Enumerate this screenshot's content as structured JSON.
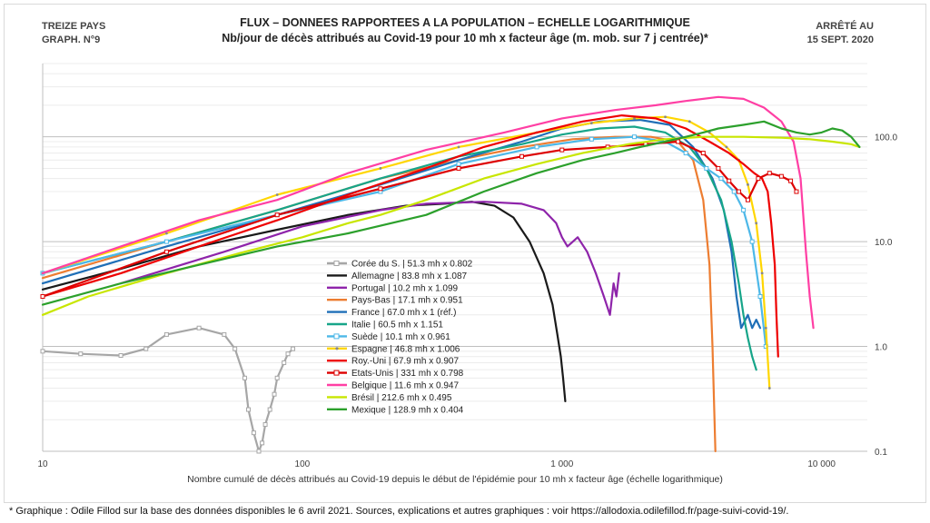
{
  "header": {
    "left_line1": "TREIZE PAYS",
    "left_line2": "GRAPH. N°9",
    "right_line1": "ARRÊTÉ AU",
    "right_line2": "15 SEPT. 2020",
    "title_line1": "FLUX – DONNEES RAPPORTEES A LA POPULATION – ECHELLE LOGARITHMIQUE",
    "title_line2": "Nb/jour de décès attribués au Covid-19 pour 10 mh x facteur âge (m. mob. sur 7 j centrée)*"
  },
  "footnote": "* Graphique : Odile Fillod sur la base des données disponibles le 6 avril 2021. Sources, explications et autres graphiques : voir https://allodoxia.odilefillod.fr/page-suivi-covid-19/.",
  "chart_data": {
    "type": "line",
    "title": "FLUX – DONNEES RAPPORTEES A LA POPULATION – ECHELLE LOGARITHMIQUE",
    "xlabel": "Nombre cumulé de décès attribués au Covid-19 depuis le début de l'épidémie pour 10 mh x facteur âge (échelle logarithmique)",
    "ylabel": "Nb/jour de décès attribués au Covid-19 pour 10 mh x facteur âge",
    "x_scale": "log",
    "y_scale": "log",
    "xlim": [
      10,
      15000
    ],
    "ylim": [
      0.1,
      500
    ],
    "x_ticks": [
      10,
      100,
      1000,
      10000
    ],
    "x_tick_labels": [
      "10",
      "100",
      "1 000",
      "10 000"
    ],
    "y_ticks": [
      0.1,
      1,
      10,
      100
    ],
    "y_tick_labels": [
      "0.1",
      "1.0",
      "10.0",
      "100.0"
    ],
    "legend_position": "center-left",
    "series": [
      {
        "name": "Corée du S. | 51.3 mh x 0.802",
        "color": "#a6a6a6",
        "marker": "square-hollow",
        "x": [
          10,
          14,
          20,
          25,
          30,
          40,
          50,
          55,
          60,
          62,
          65,
          68,
          70,
          72,
          75,
          78,
          80,
          85,
          88,
          92
        ],
        "y": [
          0.9,
          0.85,
          0.82,
          0.95,
          1.3,
          1.5,
          1.3,
          0.95,
          0.5,
          0.25,
          0.15,
          0.1,
          0.12,
          0.18,
          0.25,
          0.35,
          0.5,
          0.7,
          0.85,
          0.95
        ]
      },
      {
        "name": "Allemagne | 83.8 mh x 1.087",
        "color": "#1a1a1a",
        "marker": "none",
        "x": [
          10,
          20,
          40,
          80,
          150,
          250,
          350,
          450,
          550,
          650,
          750,
          850,
          920,
          960,
          990,
          1010,
          1030
        ],
        "y": [
          3.5,
          5.5,
          9,
          13,
          18,
          22,
          23,
          24,
          22,
          17,
          10,
          5,
          2.5,
          1.3,
          0.8,
          0.5,
          0.3
        ]
      },
      {
        "name": "Portugal | 10.2 mh x 1.099",
        "color": "#8e24aa",
        "marker": "none",
        "x": [
          20,
          50,
          100,
          200,
          300,
          500,
          700,
          850,
          950,
          1000,
          1050,
          1150,
          1250,
          1350,
          1450,
          1530,
          1580,
          1620,
          1660
        ],
        "y": [
          4,
          8,
          14,
          20,
          23,
          24,
          23,
          20,
          15,
          11,
          9,
          11,
          8,
          5,
          3,
          2,
          4,
          3,
          5
        ]
      },
      {
        "name": "Pays-Bas | 17.1 mh x 0.951",
        "color": "#ed7d31",
        "marker": "none",
        "x": [
          10,
          30,
          80,
          200,
          400,
          700,
          1100,
          1600,
          2200,
          2800,
          3200,
          3500,
          3700,
          3800,
          3900
        ],
        "y": [
          4.5,
          10,
          20,
          40,
          60,
          80,
          95,
          100,
          100,
          90,
          60,
          25,
          6,
          1,
          0.1
        ]
      },
      {
        "name": "France | 67.0 mh x 1 (réf.)",
        "color": "#1f6fb7",
        "marker": "none",
        "x": [
          10,
          30,
          80,
          200,
          400,
          700,
          1000,
          1400,
          2000,
          2600,
          3200,
          3800,
          4200,
          4500,
          4700,
          4900,
          5200,
          5400,
          5600,
          5800
        ],
        "y": [
          4,
          9,
          18,
          35,
          60,
          90,
          120,
          140,
          145,
          130,
          80,
          40,
          20,
          8,
          3,
          1.5,
          2,
          1.5,
          1.8,
          1.5
        ]
      },
      {
        "name": "Italie | 60.5 mh x 1.151",
        "color": "#17a589",
        "marker": "none",
        "x": [
          10,
          30,
          80,
          200,
          400,
          700,
          1000,
          1400,
          1900,
          2500,
          3100,
          3600,
          4100,
          4500,
          4800,
          5000,
          5200,
          5400,
          5600
        ],
        "y": [
          5,
          10,
          20,
          40,
          65,
          85,
          105,
          120,
          125,
          110,
          80,
          50,
          25,
          10,
          4,
          2,
          1.2,
          0.8,
          0.6
        ]
      },
      {
        "name": "Suède | 10.1 mh x 0.961",
        "color": "#4db8e8",
        "marker": "square-hollow",
        "x": [
          10,
          30,
          80,
          200,
          400,
          800,
          1300,
          1900,
          2500,
          3000,
          3600,
          4100,
          4600,
          5000,
          5400,
          5800,
          6100
        ],
        "y": [
          5,
          10,
          18,
          30,
          55,
          80,
          95,
          100,
          90,
          70,
          50,
          40,
          30,
          20,
          10,
          3,
          1
        ]
      },
      {
        "name": "Espagne | 46.8 mh x 1.006",
        "color": "#ffd600",
        "marker": "dot",
        "x": [
          10,
          30,
          80,
          200,
          400,
          800,
          1300,
          1900,
          2500,
          3100,
          3700,
          4300,
          4800,
          5200,
          5600,
          5900,
          6100,
          6300
        ],
        "y": [
          5,
          12,
          28,
          50,
          80,
          110,
          135,
          150,
          155,
          140,
          110,
          80,
          60,
          35,
          15,
          5,
          1.5,
          0.4
        ]
      },
      {
        "name": "Roy.-Uni | 67.9 mh x 0.907",
        "color": "#ee0000",
        "marker": "none",
        "x": [
          10,
          20,
          40,
          80,
          150,
          300,
          500,
          800,
          1200,
          1700,
          2300,
          3000,
          3700,
          4400,
          5000,
          5500,
          5900,
          6200,
          6400,
          6600,
          6700,
          6800
        ],
        "y": [
          3,
          5,
          9,
          16,
          28,
          50,
          80,
          110,
          140,
          160,
          150,
          120,
          90,
          70,
          55,
          45,
          40,
          30,
          15,
          6,
          2,
          0.8
        ]
      },
      {
        "name": "Etats-Unis | 331 mh x 0.798",
        "color": "#dd0000",
        "marker": "square-hollow",
        "x": [
          10,
          30,
          80,
          200,
          400,
          700,
          1000,
          1500,
          2100,
          2800,
          3500,
          4000,
          4400,
          4800,
          5200,
          5700,
          6300,
          7000,
          7600,
          8000
        ],
        "y": [
          3,
          8,
          18,
          32,
          50,
          65,
          75,
          80,
          85,
          90,
          70,
          50,
          38,
          30,
          25,
          40,
          45,
          42,
          38,
          30
        ]
      },
      {
        "name": "Belgique | 11.6 mh x 0.947",
        "color": "#ff3fa4",
        "marker": "none",
        "x": [
          10,
          20,
          40,
          80,
          150,
          300,
          600,
          1000,
          1600,
          2300,
          3000,
          4000,
          5000,
          6000,
          7000,
          7800,
          8300,
          8700,
          9000,
          9300
        ],
        "y": [
          5,
          9,
          16,
          25,
          45,
          75,
          110,
          150,
          180,
          200,
          220,
          240,
          230,
          190,
          140,
          90,
          40,
          8,
          3,
          1.5
        ]
      },
      {
        "name": "Brésil | 212.6 mh x 0.495",
        "color": "#c8e600",
        "marker": "none",
        "x": [
          10,
          15,
          30,
          60,
          100,
          150,
          200,
          300,
          500,
          800,
          1200,
          1800,
          2500,
          3500,
          5000,
          7000,
          9000,
          11000,
          13000,
          14000
        ],
        "y": [
          2,
          3,
          5,
          8,
          11,
          15,
          18,
          25,
          40,
          55,
          70,
          85,
          95,
          100,
          100,
          98,
          95,
          90,
          85,
          80
        ]
      },
      {
        "name": "Mexique | 128.9 mh x 0.404",
        "color": "#2ca02c",
        "marker": "none",
        "x": [
          10,
          20,
          40,
          80,
          150,
          300,
          500,
          800,
          1200,
          1600,
          2000,
          2500,
          3000,
          3500,
          4000,
          5000,
          6000,
          7000,
          8000,
          9000,
          10000,
          11000,
          12000,
          13000,
          14000
        ],
        "y": [
          2.5,
          4,
          6,
          9,
          12,
          18,
          30,
          45,
          60,
          70,
          80,
          90,
          100,
          110,
          120,
          130,
          140,
          120,
          110,
          105,
          110,
          120,
          115,
          100,
          80
        ]
      }
    ]
  }
}
